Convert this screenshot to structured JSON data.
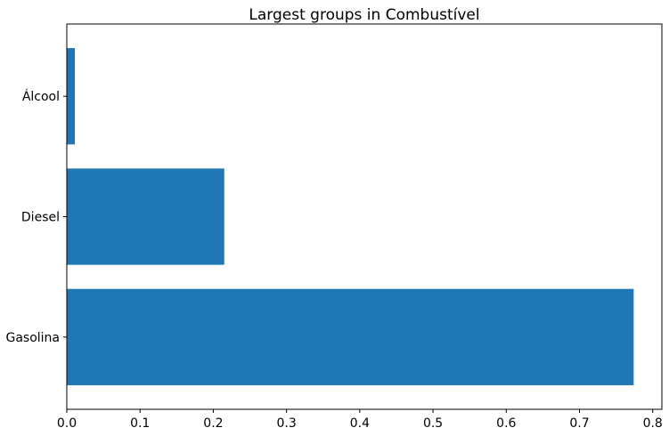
{
  "chart_data": {
    "type": "bar",
    "orientation": "horizontal",
    "title": "Largest groups in Combustível",
    "xlabel": "",
    "ylabel": "",
    "categories": [
      "Gasolina",
      "Diesel",
      "Álcool"
    ],
    "values": [
      0.774,
      0.215,
      0.011
    ],
    "xlim": [
      0,
      0.8125
    ],
    "xticks": [
      "0.0",
      "0.1",
      "0.2",
      "0.3",
      "0.4",
      "0.5",
      "0.6",
      "0.7",
      "0.8"
    ],
    "bar_color": "#1f77b4",
    "grid": false,
    "legend": "none"
  }
}
